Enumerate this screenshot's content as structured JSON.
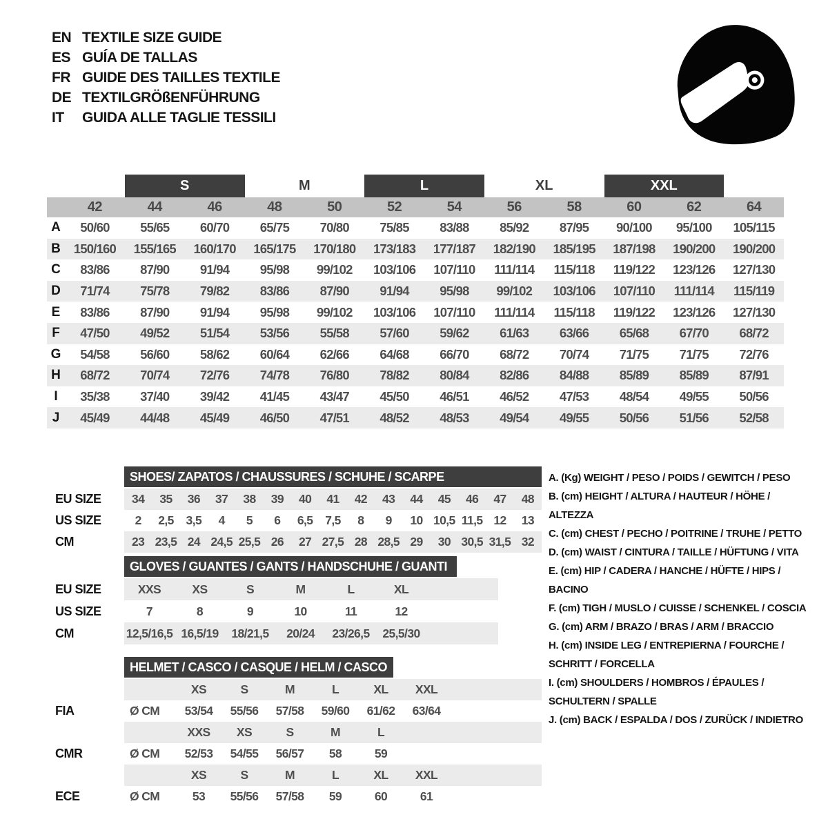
{
  "languages": [
    {
      "code": "EN",
      "title": "TEXTILE SIZE GUIDE"
    },
    {
      "code": "ES",
      "title": "GUÍA DE TALLAS"
    },
    {
      "code": "FR",
      "title": "GUIDE DES TAILLES TEXTILE"
    },
    {
      "code": "DE",
      "title": "TEXTILGRÖßENFÜHRUNG"
    },
    {
      "code": "IT",
      "title": "GUIDA ALLE TAGLIE TESSILI"
    }
  ],
  "icons": {
    "helmet": "racing-helmet-icon"
  },
  "colors": {
    "dark": "#3e3e3e",
    "num_band": "#c3c3c3",
    "stripe": "#ebebeb",
    "value_text": "#4f4f4f"
  },
  "main_table": {
    "bands": [
      {
        "label": "S",
        "dark": true
      },
      {
        "label": "M",
        "dark": false
      },
      {
        "label": "L",
        "dark": true
      },
      {
        "label": "XL",
        "dark": false
      },
      {
        "label": "XXL",
        "dark": true
      }
    ],
    "size_numbers": [
      "42",
      "44",
      "46",
      "48",
      "50",
      "52",
      "54",
      "56",
      "58",
      "60",
      "62",
      "64"
    ],
    "rows": [
      {
        "letter": "A",
        "values": [
          "50/60",
          "55/65",
          "60/70",
          "65/75",
          "70/80",
          "75/85",
          "83/88",
          "85/92",
          "87/95",
          "90/100",
          "95/100",
          "105/115"
        ]
      },
      {
        "letter": "B",
        "values": [
          "150/160",
          "155/165",
          "160/170",
          "165/175",
          "170/180",
          "173/183",
          "177/187",
          "182/190",
          "185/195",
          "187/198",
          "190/200",
          "190/200"
        ]
      },
      {
        "letter": "C",
        "values": [
          "83/86",
          "87/90",
          "91/94",
          "95/98",
          "99/102",
          "103/106",
          "107/110",
          "111/114",
          "115/118",
          "119/122",
          "123/126",
          "127/130"
        ]
      },
      {
        "letter": "D",
        "values": [
          "71/74",
          "75/78",
          "79/82",
          "83/86",
          "87/90",
          "91/94",
          "95/98",
          "99/102",
          "103/106",
          "107/110",
          "111/114",
          "115/119"
        ]
      },
      {
        "letter": "E",
        "values": [
          "83/86",
          "87/90",
          "91/94",
          "95/98",
          "99/102",
          "103/106",
          "107/110",
          "111/114",
          "115/118",
          "119/122",
          "123/126",
          "127/130"
        ]
      },
      {
        "letter": "F",
        "values": [
          "47/50",
          "49/52",
          "51/54",
          "53/56",
          "55/58",
          "57/60",
          "59/62",
          "61/63",
          "63/66",
          "65/68",
          "67/70",
          "68/72"
        ]
      },
      {
        "letter": "G",
        "values": [
          "54/58",
          "56/60",
          "58/62",
          "60/64",
          "62/66",
          "64/68",
          "66/70",
          "68/72",
          "70/74",
          "71/75",
          "71/75",
          "72/76"
        ]
      },
      {
        "letter": "H",
        "values": [
          "68/72",
          "70/74",
          "72/76",
          "74/78",
          "76/80",
          "78/82",
          "80/84",
          "82/86",
          "84/88",
          "85/89",
          "85/89",
          "87/91"
        ]
      },
      {
        "letter": "I",
        "values": [
          "35/38",
          "37/40",
          "39/42",
          "41/45",
          "43/47",
          "45/50",
          "46/51",
          "46/52",
          "47/53",
          "48/54",
          "49/55",
          "50/56"
        ]
      },
      {
        "letter": "J",
        "values": [
          "45/49",
          "44/48",
          "45/49",
          "46/50",
          "47/51",
          "48/52",
          "48/53",
          "49/54",
          "49/55",
          "50/56",
          "51/56",
          "52/58"
        ]
      }
    ]
  },
  "shoes": {
    "title": "SHOES/ ZAPATOS / CHAUSSURES / SCHUHE / SCARPE",
    "rows": [
      {
        "label": "EU SIZE",
        "shaded": true,
        "values": [
          "34",
          "35",
          "36",
          "37",
          "38",
          "39",
          "40",
          "41",
          "42",
          "43",
          "44",
          "45",
          "46",
          "47",
          "48"
        ]
      },
      {
        "label": "US SIZE",
        "shaded": false,
        "values": [
          "2",
          "2,5",
          "3,5",
          "4",
          "5",
          "6",
          "6,5",
          "7,5",
          "8",
          "9",
          "10",
          "10,5",
          "11,5",
          "12",
          "13"
        ]
      },
      {
        "label": "CM",
        "shaded": true,
        "values": [
          "23",
          "23,5",
          "24",
          "24,5",
          "25,5",
          "26",
          "27",
          "27,5",
          "28",
          "28,5",
          "29",
          "30",
          "30,5",
          "31,5",
          "32"
        ]
      }
    ]
  },
  "gloves": {
    "title": "GLOVES / GUANTES / GANTS / HANDSCHUHE / GUANTI",
    "rows": [
      {
        "label": "EU SIZE",
        "shaded": true,
        "values": [
          "XXS",
          "XS",
          "S",
          "M",
          "L",
          "XL"
        ]
      },
      {
        "label": "US SIZE",
        "shaded": false,
        "values": [
          "7",
          "8",
          "9",
          "10",
          "11",
          "12"
        ]
      },
      {
        "label": "CM",
        "shaded": true,
        "values": [
          "12,5/16,5",
          "16,5/19",
          "18/21,5",
          "20/24",
          "23/26,5",
          "25,5/30"
        ]
      }
    ]
  },
  "helmet": {
    "title": "HELMET / CASCO / CASQUE / HELM / CASCO",
    "rows": [
      {
        "type": "sizes",
        "label": "",
        "unit": "",
        "values": [
          "XS",
          "S",
          "M",
          "L",
          "XL",
          "XXL"
        ]
      },
      {
        "type": "values",
        "label": "FIA",
        "unit": "Ø CM",
        "values": [
          "53/54",
          "55/56",
          "57/58",
          "59/60",
          "61/62",
          "63/64"
        ]
      },
      {
        "type": "sizes",
        "label": "",
        "unit": "",
        "values": [
          "XXS",
          "XS",
          "S",
          "M",
          "L",
          ""
        ]
      },
      {
        "type": "values",
        "label": "CMR",
        "unit": "Ø CM",
        "values": [
          "52/53",
          "54/55",
          "56/57",
          "58",
          "59",
          ""
        ]
      },
      {
        "type": "sizes",
        "label": "",
        "unit": "",
        "values": [
          "XS",
          "S",
          "M",
          "L",
          "XL",
          "XXL"
        ]
      },
      {
        "type": "values",
        "label": "ECE",
        "unit": "Ø CM",
        "values": [
          "53",
          "55/56",
          "57/58",
          "59",
          "60",
          "61"
        ]
      }
    ]
  },
  "legend": {
    "items": [
      {
        "key": "A.",
        "unit": "(Kg)",
        "text": "WEIGHT / PESO / POIDS / GEWITCH / PESO"
      },
      {
        "key": "B.",
        "unit": "(cm)",
        "text": "HEIGHT / ALTURA / HAUTEUR / HÖHE / ALTEZZA"
      },
      {
        "key": "C.",
        "unit": "(cm)",
        "text": "CHEST / PECHO / POITRINE / TRUHE / PETTO"
      },
      {
        "key": "D.",
        "unit": "(cm)",
        "text": "WAIST / CINTURA / TAILLE / HÜFTUNG / VITA"
      },
      {
        "key": "E.",
        "unit": "(cm)",
        "text": "HIP / CADERA / HANCHE / HÜFTE / HIPS /  BACINO"
      },
      {
        "key": "F.",
        "unit": "(cm)",
        "text": "TIGH / MUSLO / CUISSE / SCHENKEL / COSCIA"
      },
      {
        "key": "G.",
        "unit": "(cm)",
        "text": "ARM  / BRAZO / BRAS / ARM / BRACCIO"
      },
      {
        "key": "H.",
        "unit": "(cm)",
        "text": "INSIDE LEG / ENTREPIERNA / FOURCHE / SCHRITT / FORCELLA"
      },
      {
        "key": "I.",
        "unit": "(cm)",
        "text": "SHOULDERS / HOMBROS / ÉPAULES / SCHULTERN / SPALLE"
      },
      {
        "key": "J.",
        "unit": "(cm)",
        "text": "BACK / ESPALDA / DOS / ZURÜCK / INDIETRO"
      }
    ]
  }
}
